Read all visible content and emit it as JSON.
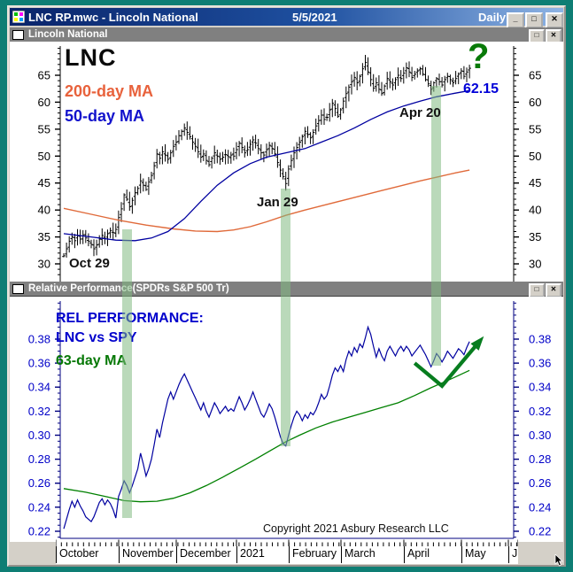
{
  "window": {
    "title": "LNC RP.mwc - Lincoln National",
    "date": "5/5/2021",
    "periodicity": "Daily",
    "icons": {
      "minimize": "_",
      "maximize": "□",
      "close": "✕"
    }
  },
  "panels": {
    "price": {
      "header": "Lincoln National",
      "symbol_label": "LNC",
      "ma200_label": "200-day MA",
      "ma50_label": "50-day MA",
      "question_mark": "?",
      "ma50_last_label": "62.15"
    },
    "relative": {
      "header": "Relative Performance(SPDRs S&P 500 Tr)",
      "label_line1": "REL PERFORMANCE:",
      "label_line2": "LNC vs SPY",
      "ma_label": "63-day MA",
      "copyright": "Copyright 2021 Asbury Research LLC"
    }
  },
  "x_axis": {
    "months": [
      "October",
      "November",
      "December",
      "2021",
      "February",
      "March",
      "April",
      "May",
      "J"
    ]
  },
  "colors": {
    "desktop": "#0E7E74",
    "chrome": "#D4D0C8",
    "header_gray": "#808080",
    "bar_black": "#000000",
    "ma50_blue": "#0000A0",
    "ma200_orange": "#E06A3A",
    "ratio_blue": "#0000A0",
    "ma63_green": "#008000",
    "arrow_green": "#077D1F",
    "band_green": "rgba(130,185,130,0.55)",
    "axis_navy": "#000080",
    "tick_label_blue": "#0000C8"
  },
  "chart_data": [
    {
      "type": "bar",
      "subtype": "ohlc-daily",
      "panel": "price",
      "symbol": "LNC",
      "ylim": [
        26.7,
        71.2
      ],
      "yticks": [
        30,
        35,
        40,
        45,
        50,
        55,
        60,
        65
      ],
      "grid": false,
      "closes": [
        31.5,
        32.8,
        34.2,
        35.0,
        34.3,
        35.2,
        34.6,
        35.4,
        34.8,
        34.2,
        33.6,
        32.8,
        33.5,
        34.6,
        35.3,
        34.7,
        35.6,
        36.2,
        35.8,
        36.4,
        38.6,
        40.2,
        42.8,
        42.0,
        40.6,
        41.8,
        43.2,
        44.0,
        45.4,
        44.6,
        43.8,
        45.2,
        46.4,
        48.2,
        50.4,
        49.6,
        50.8,
        50.2,
        49.4,
        50.6,
        51.8,
        52.6,
        53.8,
        54.6,
        55.2,
        54.4,
        53.6,
        52.6,
        51.8,
        50.8,
        49.8,
        50.4,
        49.2,
        48.4,
        49.6,
        50.6,
        50.0,
        49.4,
        49.8,
        50.3,
        49.9,
        50.2,
        50.0,
        51.2,
        52.4,
        51.6,
        50.6,
        51.2,
        52.2,
        53.0,
        52.4,
        51.4,
        50.6,
        50.2,
        51.2,
        52.0,
        51.4,
        50.4,
        48.8,
        47.4,
        46.2,
        44.9,
        47.6,
        49.2,
        50.6,
        51.6,
        52.6,
        53.6,
        54.6,
        54.0,
        53.4,
        54.4,
        55.6,
        56.6,
        57.6,
        56.8,
        57.2,
        58.6,
        59.8,
        58.8,
        57.4,
        58.6,
        60.2,
        61.6,
        62.8,
        63.8,
        64.6,
        63.6,
        64.8,
        66.2,
        67.4,
        65.6,
        64.2,
        62.6,
        63.6,
        62.4,
        61.6,
        63.0,
        64.4,
        63.8,
        63.2,
        64.2,
        65.0,
        64.4,
        65.4,
        66.4,
        65.6,
        64.6,
        65.2,
        65.8,
        66.2,
        65.2,
        64.2,
        63.4,
        62.4,
        63.6,
        64.4,
        63.8,
        63.2,
        64.2,
        64.8,
        64.2,
        63.6,
        64.4,
        65.2,
        65.8,
        64.8,
        65.6,
        66.3
      ],
      "ma50_keypoints": [
        [
          0,
          35.6
        ],
        [
          10,
          35.0
        ],
        [
          19,
          34.4
        ],
        [
          26,
          34.3
        ],
        [
          32,
          34.8
        ],
        [
          38,
          36.0
        ],
        [
          44,
          38.4
        ],
        [
          50,
          41.6
        ],
        [
          56,
          44.6
        ],
        [
          62,
          46.9
        ],
        [
          68,
          48.6
        ],
        [
          74,
          49.8
        ],
        [
          81,
          50.6
        ],
        [
          88,
          51.4
        ],
        [
          94,
          52.6
        ],
        [
          100,
          53.8
        ],
        [
          106,
          55.2
        ],
        [
          112,
          56.8
        ],
        [
          118,
          58.2
        ],
        [
          124,
          59.3
        ],
        [
          130,
          60.2
        ],
        [
          136,
          61.0
        ],
        [
          142,
          61.6
        ],
        [
          148,
          62.15
        ]
      ],
      "ma200_keypoints": [
        [
          0,
          40.3
        ],
        [
          10,
          39.2
        ],
        [
          20,
          38.1
        ],
        [
          30,
          37.2
        ],
        [
          40,
          36.5
        ],
        [
          48,
          36.1
        ],
        [
          56,
          36.0
        ],
        [
          62,
          36.3
        ],
        [
          68,
          36.9
        ],
        [
          74,
          37.8
        ],
        [
          81,
          39.0
        ],
        [
          88,
          40.0
        ],
        [
          95,
          40.9
        ],
        [
          102,
          41.8
        ],
        [
          109,
          42.7
        ],
        [
          116,
          43.6
        ],
        [
          123,
          44.5
        ],
        [
          130,
          45.4
        ],
        [
          137,
          46.2
        ],
        [
          143,
          46.9
        ],
        [
          148,
          47.4
        ]
      ],
      "ma50_last_value": 62.15,
      "markers": [
        {
          "label": "Oct 29",
          "idx": 23,
          "price": 36.4,
          "ratio": 0.231
        },
        {
          "label": "Jan 29",
          "idx": 81,
          "price": 44.0,
          "ratio": 0.291
        },
        {
          "label": "Apr 20",
          "idx": 136,
          "price": 63.0,
          "ratio": 0.358
        }
      ]
    },
    {
      "type": "line",
      "panel": "relative",
      "title": "REL PERFORMANCE: LNC vs SPY",
      "ylim": [
        0.213,
        0.414
      ],
      "yticks": [
        0.22,
        0.24,
        0.26,
        0.28,
        0.3,
        0.32,
        0.34,
        0.36,
        0.38
      ],
      "grid": false,
      "values": [
        0.222,
        0.23,
        0.238,
        0.245,
        0.24,
        0.246,
        0.241,
        0.237,
        0.232,
        0.23,
        0.228,
        0.232,
        0.238,
        0.244,
        0.247,
        0.242,
        0.246,
        0.243,
        0.238,
        0.231,
        0.249,
        0.255,
        0.262,
        0.258,
        0.252,
        0.258,
        0.265,
        0.272,
        0.285,
        0.276,
        0.266,
        0.272,
        0.28,
        0.292,
        0.305,
        0.298,
        0.31,
        0.32,
        0.33,
        0.336,
        0.33,
        0.336,
        0.342,
        0.347,
        0.351,
        0.346,
        0.341,
        0.336,
        0.331,
        0.326,
        0.321,
        0.327,
        0.32,
        0.315,
        0.321,
        0.327,
        0.323,
        0.318,
        0.321,
        0.324,
        0.32,
        0.322,
        0.32,
        0.326,
        0.332,
        0.327,
        0.321,
        0.325,
        0.33,
        0.336,
        0.33,
        0.324,
        0.318,
        0.315,
        0.32,
        0.326,
        0.322,
        0.315,
        0.307,
        0.299,
        0.293,
        0.291,
        0.3,
        0.308,
        0.315,
        0.32,
        0.317,
        0.312,
        0.317,
        0.314,
        0.319,
        0.317,
        0.321,
        0.327,
        0.334,
        0.33,
        0.333,
        0.341,
        0.35,
        0.356,
        0.353,
        0.358,
        0.353,
        0.363,
        0.37,
        0.366,
        0.373,
        0.369,
        0.376,
        0.373,
        0.381,
        0.39,
        0.384,
        0.374,
        0.365,
        0.372,
        0.366,
        0.362,
        0.37,
        0.374,
        0.37,
        0.366,
        0.371,
        0.374,
        0.37,
        0.374,
        0.371,
        0.366,
        0.369,
        0.372,
        0.375,
        0.371,
        0.367,
        0.362,
        0.357,
        0.362,
        0.368,
        0.365,
        0.361,
        0.365,
        0.37,
        0.367,
        0.364,
        0.368,
        0.372,
        0.37,
        0.367,
        0.373,
        0.378
      ],
      "ma63_keypoints": [
        [
          0,
          0.2555
        ],
        [
          8,
          0.2525
        ],
        [
          16,
          0.2485
        ],
        [
          22,
          0.2455
        ],
        [
          28,
          0.2445
        ],
        [
          34,
          0.245
        ],
        [
          40,
          0.2475
        ],
        [
          46,
          0.252
        ],
        [
          52,
          0.258
        ],
        [
          58,
          0.265
        ],
        [
          64,
          0.2725
        ],
        [
          70,
          0.28
        ],
        [
          76,
          0.288
        ],
        [
          81,
          0.2945
        ],
        [
          86,
          0.3
        ],
        [
          92,
          0.306
        ],
        [
          98,
          0.311
        ],
        [
          104,
          0.315
        ],
        [
          110,
          0.319
        ],
        [
          116,
          0.323
        ],
        [
          122,
          0.327
        ],
        [
          128,
          0.333
        ],
        [
          134,
          0.3395
        ],
        [
          140,
          0.3455
        ],
        [
          148,
          0.354
        ]
      ],
      "arrow_keypoints": [
        [
          128,
          0.36
        ],
        [
          138,
          0.341
        ],
        [
          152,
          0.379
        ]
      ]
    }
  ]
}
